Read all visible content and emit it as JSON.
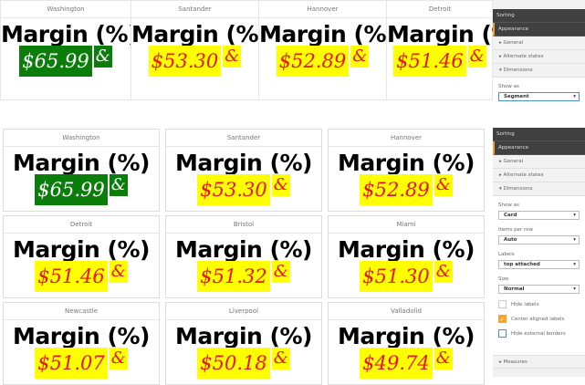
{
  "card_title": "Margin (%)",
  "amp": "&",
  "colors": {
    "green": "#0a7d0a",
    "yellow": "#ffff00",
    "red": "#e8141e",
    "accent": "#f5a623"
  },
  "top_cards": [
    {
      "label": "Washington",
      "value": "$65.99",
      "style": "green"
    },
    {
      "label": "Santander",
      "value": "$53.30",
      "style": "yellow"
    },
    {
      "label": "Hannover",
      "value": "$52.89",
      "style": "yellow"
    },
    {
      "label": "Detroit",
      "value": "$51.46",
      "style": "yellow"
    }
  ],
  "bottom_cards": [
    {
      "label": "Washington",
      "value": "$65.99",
      "style": "green"
    },
    {
      "label": "Santander",
      "value": "$53.30",
      "style": "yellow"
    },
    {
      "label": "Hannover",
      "value": "$52.89",
      "style": "yellow"
    },
    {
      "label": "Detroit",
      "value": "$51.46",
      "style": "yellow"
    },
    {
      "label": "Bristol",
      "value": "$51.32",
      "style": "yellow"
    },
    {
      "label": "Miami",
      "value": "$51.30",
      "style": "yellow"
    },
    {
      "label": "Newcastle",
      "value": "$51.07",
      "style": "yellow"
    },
    {
      "label": "Liverpool",
      "value": "$50.18",
      "style": "yellow"
    },
    {
      "label": "Valladolid",
      "value": "$49.74",
      "style": "yellow"
    }
  ],
  "panel_top": {
    "sorting": "Sorting",
    "appearance": "Appearance",
    "general": "General",
    "alternate": "Alternate states",
    "dimensions": "Dimensions",
    "show_as_label": "Show as",
    "show_as_value": "Segment"
  },
  "panel_bottom": {
    "sorting": "Sorting",
    "appearance": "Appearance",
    "general": "General",
    "alternate": "Alternate states",
    "dimensions": "Dimensions",
    "show_as_label": "Show as",
    "show_as_value": "Card",
    "items_label": "Items per row",
    "items_value": "Auto",
    "labels_label": "Labels",
    "labels_value": "top attached",
    "size_label": "Size",
    "size_value": "Normal",
    "hide_labels": "Hide labels",
    "hide_labels_checked": false,
    "center_labels": "Center aligned labels",
    "center_labels_checked": true,
    "hide_borders": "Hide external borders",
    "hide_borders_checked": false,
    "measures": "Measures"
  }
}
